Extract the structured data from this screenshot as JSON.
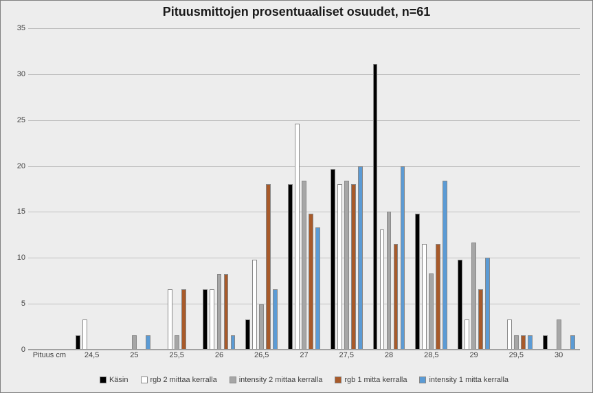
{
  "chart": {
    "type": "bar",
    "title": "Pituusmittojen prosentuaaliset osuudet, n=61",
    "title_fontsize": 18,
    "title_fontweight": "bold",
    "background_color": "#ededed",
    "grid_color": "#c0c0c0",
    "baseline_color": "#9a9a9a",
    "bar_border_color": "#888888",
    "axis_label_color": "#404040",
    "axis_fontsize": 11,
    "ylim": [
      0,
      35
    ],
    "ytick_step": 5,
    "x_axis_title": "Pituus cm",
    "categories": [
      "24,5",
      "25",
      "25,5",
      "26",
      "26,5",
      "27",
      "27,5",
      "28",
      "28,5",
      "29",
      "29,5",
      "30"
    ],
    "series": [
      {
        "name": "Käsin",
        "color": "#000000",
        "data": [
          1.6,
          0,
          0,
          6.6,
          3.3,
          18.0,
          19.7,
          31.1,
          14.8,
          9.8,
          0,
          1.6
        ]
      },
      {
        "name": "rgb 2 mittaa kerralla",
        "color": "#ffffff",
        "data": [
          3.3,
          0,
          6.6,
          6.6,
          9.8,
          24.6,
          18.0,
          13.1,
          11.5,
          3.3,
          3.3,
          0
        ]
      },
      {
        "name": "intensity 2 mittaa kerralla",
        "color": "#a6a6a6",
        "data": [
          0,
          1.6,
          1.6,
          8.2,
          4.9,
          18.4,
          18.4,
          15.0,
          8.3,
          11.7,
          1.6,
          3.3
        ]
      },
      {
        "name": "rgb 1 mitta kerralla",
        "color": "#a85a2a",
        "data": [
          0,
          0,
          6.6,
          8.2,
          18.0,
          14.8,
          18.0,
          11.5,
          11.5,
          6.6,
          1.6,
          0
        ]
      },
      {
        "name": "intensity 1 mitta kerralla",
        "color": "#5b9bd5",
        "data": [
          0,
          1.6,
          0,
          1.6,
          6.6,
          13.3,
          20.0,
          20.0,
          18.4,
          10.0,
          1.6,
          1.6
        ]
      }
    ],
    "legend_fontsize": 11,
    "bar_group_inner_gap": 0.05,
    "bar_group_outer_pad": 0.12
  }
}
